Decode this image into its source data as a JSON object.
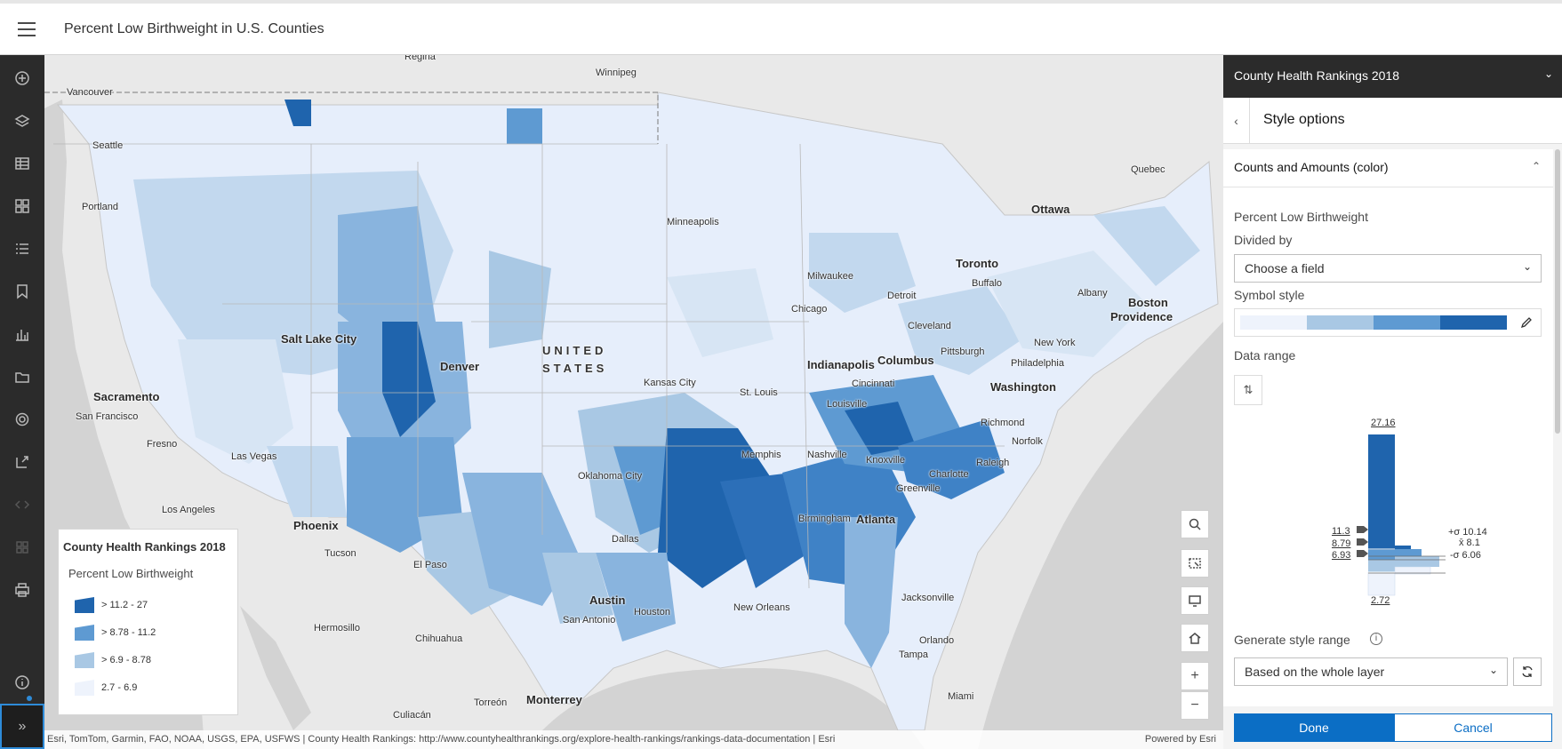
{
  "app": {
    "title": "Percent Low Birthweight in U.S. Counties"
  },
  "toolbar": {
    "items": [
      {
        "icon": "add-icon",
        "label": "Add"
      },
      {
        "icon": "layers-icon",
        "label": "Layers"
      },
      {
        "icon": "table-icon",
        "label": "Tables"
      },
      {
        "icon": "basemap-icon",
        "label": "Basemap"
      },
      {
        "icon": "legend-icon",
        "label": "Legend"
      },
      {
        "icon": "bookmark-icon",
        "label": "Bookmarks"
      },
      {
        "icon": "charts-icon",
        "label": "Charts"
      },
      {
        "icon": "folder-icon",
        "label": "Folder"
      },
      {
        "icon": "settings-icon",
        "label": "Settings"
      },
      {
        "icon": "share-icon",
        "label": "Share"
      },
      {
        "icon": "embed-icon",
        "label": "Embed"
      },
      {
        "icon": "apps-icon",
        "label": "Apps"
      },
      {
        "icon": "print-icon",
        "label": "Print"
      },
      {
        "icon": "info-icon",
        "label": "Info"
      }
    ],
    "expand_glyph": "»"
  },
  "map": {
    "country_label_1": "UNITED",
    "country_label_2": "STATES",
    "places": {
      "regina": "Regina",
      "winnipeg": "Winnipeg",
      "vancouver": "Vancouver",
      "seattle": "Seattle",
      "portland": "Portland",
      "salt_lake_city": "Salt Lake City",
      "denver": "Denver",
      "sacramento": "Sacramento",
      "san_francisco": "San Francisco",
      "fresno": "Fresno",
      "las_vegas": "Las Vegas",
      "los_angeles": "Los Angeles",
      "phoenix": "Phoenix",
      "tucson": "Tucson",
      "el_paso": "El Paso",
      "hermosillo": "Hermosillo",
      "chihuahua": "Chihuahua",
      "culiacan": "Culiacán",
      "torreon": "Torreón",
      "monterrey": "Monterrey",
      "dallas": "Dallas",
      "austin": "Austin",
      "san_antonio": "San Antonio",
      "houston": "Houston",
      "new_orleans": "New Orleans",
      "oklahoma_city": "Oklahoma City",
      "kansas_city": "Kansas City",
      "minneapolis": "Minneapolis",
      "milwaukee": "Milwaukee",
      "chicago": "Chicago",
      "detroit": "Detroit",
      "indianapolis": "Indianapolis",
      "columbus": "Columbus",
      "cincinnati": "Cincinnati",
      "louisville": "Louisville",
      "st_louis": "St. Louis",
      "memphis": "Memphis",
      "nashville": "Nashville",
      "knoxville": "Knoxville",
      "birmingham": "Birmingham",
      "atlanta": "Atlanta",
      "greenville": "Greenville",
      "charlotte": "Charlotte",
      "raleigh": "Raleigh",
      "norfolk": "Norfolk",
      "richmond": "Richmond",
      "washington": "Washington",
      "philadelphia": "Philadelphia",
      "new_york": "New York",
      "pittsburgh": "Pittsburgh",
      "cleveland": "Cleveland",
      "toronto": "Toronto",
      "buffalo": "Buffalo",
      "ottawa": "Ottawa",
      "quebec": "Quebec",
      "albany": "Albany",
      "boston": "Boston",
      "providence": "Providence",
      "jacksonville": "Jacksonville",
      "orlando": "Orlando",
      "tampa": "Tampa",
      "miami": "Miami"
    },
    "controls": [
      "search-icon",
      "select-icon",
      "screen-icon",
      "home-icon",
      "zoom-in-icon",
      "zoom-out-icon"
    ],
    "zoom_in": "+",
    "zoom_out": "−",
    "attribution": "Esri, TomTom, Garmin, FAO, NOAA, USGS, EPA, USFWS | County Health Rankings: http://www.countyhealthrankings.org/explore-health-rankings/rankings-data-documentation | Esri",
    "powered_by": "Powered by Esri"
  },
  "legend": {
    "title": "County Health Rankings 2018",
    "field": "Percent Low Birthweight",
    "classes": [
      {
        "label": "> 11.2 - 27",
        "color": "#1f64ad"
      },
      {
        "label": "> 8.78 - 11.2",
        "color": "#5e9ad2"
      },
      {
        "label": "> 6.9 - 8.78",
        "color": "#a9c8e4"
      },
      {
        "label": "2.7 - 6.9",
        "color": "#eef3fc"
      }
    ]
  },
  "panel": {
    "layer_title": "County Health Rankings 2018",
    "subtitle": "Style options",
    "section_title": "Counts and Amounts (color)",
    "field_name": "Percent Low Birthweight",
    "divided_by_label": "Divided by",
    "divided_by_value": "Choose a field",
    "symbol_style_label": "Symbol style",
    "ramp_colors": [
      "#eef3fc",
      "#a9c8e4",
      "#5e9ad2",
      "#1f64ad"
    ],
    "data_range_label": "Data range",
    "histogram": {
      "max": "27.16",
      "min": "2.72",
      "breaks": [
        "11.3",
        "8.79",
        "6.93"
      ],
      "plus_sigma": "+σ 10.14",
      "mean": "x̄ 8.1",
      "minus_sigma": "-σ 6.06"
    },
    "generate_label": "Generate style range",
    "generate_value": "Based on the whole layer",
    "done": "Done",
    "cancel": "Cancel"
  }
}
